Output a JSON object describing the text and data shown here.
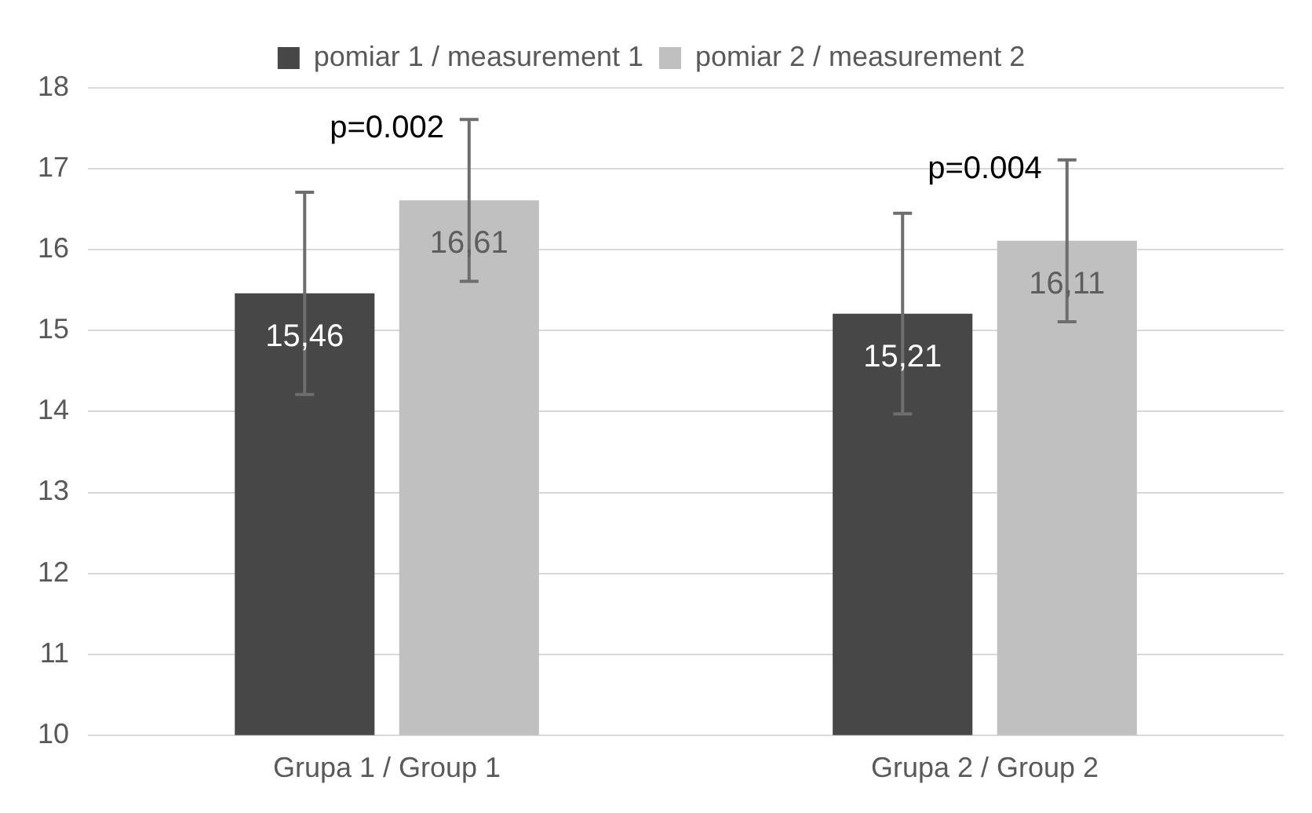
{
  "chart_data": {
    "type": "bar",
    "categories": [
      "Grupa 1 / Group 1",
      "Grupa 2 / Group 2"
    ],
    "series": [
      {
        "name": "pomiar 1 / measurement 1",
        "color": "#474747",
        "values": [
          15.46,
          15.21
        ],
        "errors": [
          1.25,
          1.24
        ],
        "value_labels": [
          "15,46",
          "15,21"
        ]
      },
      {
        "name": "pomiar 2 / measurement 2",
        "color": "#c0c0c0",
        "values": [
          16.61,
          16.11
        ],
        "errors": [
          1.0,
          1.0
        ],
        "value_labels": [
          "16,61",
          "16,11"
        ]
      }
    ],
    "ylim": [
      10,
      18
    ],
    "yticks": [
      10,
      11,
      12,
      13,
      14,
      15,
      16,
      17,
      18
    ],
    "grid": "y",
    "legend": "top",
    "annotations": [
      "p=0.002",
      "p=0.004"
    ]
  }
}
